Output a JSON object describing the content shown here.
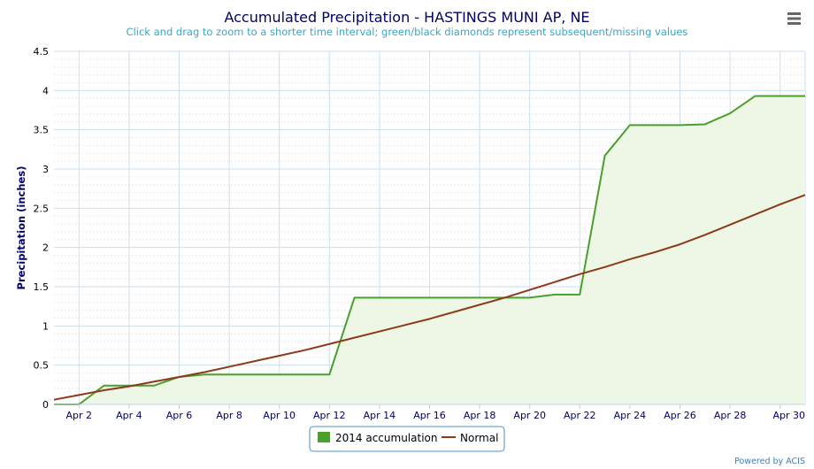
{
  "chart_data": {
    "type": "line",
    "title": "Accumulated Precipitation - HASTINGS MUNI AP, NE",
    "subtitle": "Click and drag to zoom to a shorter time interval; green/black diamonds represent subsequent/missing values",
    "ylabel": "Precipitation (inches)",
    "xlabel": "",
    "ylim": [
      0,
      4.5
    ],
    "xlim": [
      1,
      31
    ],
    "yticks": [
      0,
      0.5,
      1,
      1.5,
      2,
      2.5,
      3,
      3.5,
      4,
      4.5
    ],
    "ytick_labels": [
      "0",
      "0.5",
      "1",
      "1.5",
      "2",
      "2.5",
      "3",
      "3.5",
      "4",
      "4.5"
    ],
    "xticks": [
      2,
      4,
      6,
      8,
      10,
      12,
      14,
      16,
      18,
      20,
      22,
      24,
      26,
      28,
      30
    ],
    "xtick_labels": [
      "Apr 2",
      "Apr 4",
      "Apr 6",
      "Apr 8",
      "Apr 10",
      "Apr 12",
      "Apr 14",
      "Apr 16",
      "Apr 18",
      "Apr 20",
      "Apr 22",
      "Apr 24",
      "Apr 26",
      "Apr 28",
      "Apr 30"
    ],
    "grid": true,
    "legend_position": "bottom-center",
    "series": [
      {
        "name": "2014 accumulation",
        "color": "#4aa02c",
        "fill": "#eef6e6",
        "x": [
          1,
          2,
          3,
          4,
          5,
          6,
          7,
          8,
          9,
          10,
          11,
          12,
          13,
          14,
          15,
          16,
          17,
          18,
          19,
          20,
          21,
          22,
          23,
          24,
          25,
          26,
          27,
          28,
          29,
          30,
          31
        ],
        "y": [
          0,
          0,
          0.24,
          0.24,
          0.24,
          0.35,
          0.38,
          0.38,
          0.38,
          0.38,
          0.38,
          0.38,
          1.36,
          1.36,
          1.36,
          1.36,
          1.36,
          1.36,
          1.36,
          1.36,
          1.4,
          1.4,
          3.17,
          3.56,
          3.56,
          3.56,
          3.57,
          3.71,
          3.93,
          3.93,
          3.93
        ]
      },
      {
        "name": "Normal",
        "color": "#8b3a1a",
        "x": [
          1,
          2,
          3,
          4,
          5,
          6,
          7,
          8,
          9,
          10,
          11,
          12,
          13,
          14,
          15,
          16,
          17,
          18,
          19,
          20,
          21,
          22,
          23,
          24,
          25,
          26,
          27,
          28,
          29,
          30,
          31
        ],
        "y": [
          0.06,
          0.12,
          0.18,
          0.23,
          0.29,
          0.35,
          0.41,
          0.48,
          0.55,
          0.62,
          0.69,
          0.77,
          0.85,
          0.93,
          1.01,
          1.09,
          1.18,
          1.27,
          1.36,
          1.46,
          1.56,
          1.66,
          1.75,
          1.85,
          1.94,
          2.04,
          2.16,
          2.29,
          2.42,
          2.55,
          2.67
        ]
      }
    ]
  },
  "credit": "Powered by ACIS",
  "menu_icon": "hamburger-menu-icon"
}
